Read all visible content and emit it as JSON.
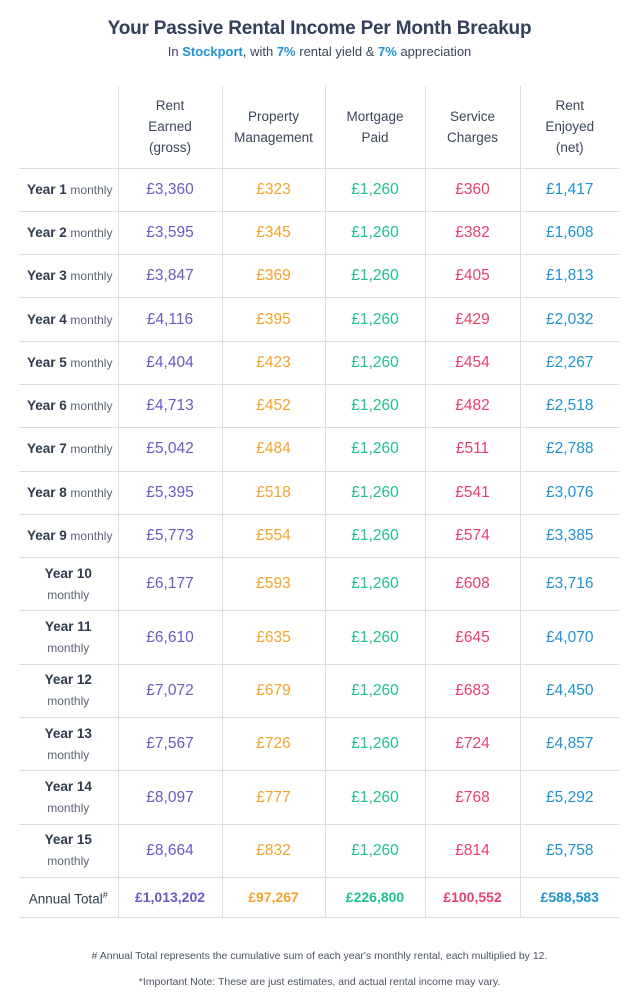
{
  "header": {
    "title": "Your Passive Rental Income Per Month Breakup",
    "sub_in": "In",
    "location": "Stockport",
    "sub_with": ", with",
    "yield": "7%",
    "sub_yield_text": "rental yield &",
    "appreciation": "7%",
    "sub_appreciation_text": "appreciation"
  },
  "columns": {
    "rent": [
      "Rent",
      "Earned",
      "(gross)"
    ],
    "pm": [
      "Property",
      "Management"
    ],
    "mortgage": [
      "Mortgage",
      "Paid"
    ],
    "service": [
      "Service",
      "Charges"
    ],
    "net": [
      "Rent",
      "Enjoyed",
      "(net)"
    ]
  },
  "rows": [
    {
      "year": "Year 1",
      "period": "monthly",
      "rent": "£3,360",
      "pm": "£323",
      "mortgage": "£1,260",
      "service": "£360",
      "net": "£1,417"
    },
    {
      "year": "Year 2",
      "period": "monthly",
      "rent": "£3,595",
      "pm": "£345",
      "mortgage": "£1,260",
      "service": "£382",
      "net": "£1,608"
    },
    {
      "year": "Year 3",
      "period": "monthly",
      "rent": "£3,847",
      "pm": "£369",
      "mortgage": "£1,260",
      "service": "£405",
      "net": "£1,813"
    },
    {
      "year": "Year 4",
      "period": "monthly",
      "rent": "£4,116",
      "pm": "£395",
      "mortgage": "£1,260",
      "service": "£429",
      "net": "£2,032"
    },
    {
      "year": "Year 5",
      "period": "monthly",
      "rent": "£4,404",
      "pm": "£423",
      "mortgage": "£1,260",
      "service": "£454",
      "net": "£2,267"
    },
    {
      "year": "Year 6",
      "period": "monthly",
      "rent": "£4,713",
      "pm": "£452",
      "mortgage": "£1,260",
      "service": "£482",
      "net": "£2,518"
    },
    {
      "year": "Year 7",
      "period": "monthly",
      "rent": "£5,042",
      "pm": "£484",
      "mortgage": "£1,260",
      "service": "£511",
      "net": "£2,788"
    },
    {
      "year": "Year 8",
      "period": "monthly",
      "rent": "£5,395",
      "pm": "£518",
      "mortgage": "£1,260",
      "service": "£541",
      "net": "£3,076"
    },
    {
      "year": "Year 9",
      "period": "monthly",
      "rent": "£5,773",
      "pm": "£554",
      "mortgage": "£1,260",
      "service": "£574",
      "net": "£3,385"
    },
    {
      "year": "Year 10",
      "period": "monthly",
      "rent": "£6,177",
      "pm": "£593",
      "mortgage": "£1,260",
      "service": "£608",
      "net": "£3,716"
    },
    {
      "year": "Year 11",
      "period": "monthly",
      "rent": "£6,610",
      "pm": "£635",
      "mortgage": "£1,260",
      "service": "£645",
      "net": "£4,070"
    },
    {
      "year": "Year 12",
      "period": "monthly",
      "rent": "£7,072",
      "pm": "£679",
      "mortgage": "£1,260",
      "service": "£683",
      "net": "£4,450"
    },
    {
      "year": "Year 13",
      "period": "monthly",
      "rent": "£7,567",
      "pm": "£726",
      "mortgage": "£1,260",
      "service": "£724",
      "net": "£4,857"
    },
    {
      "year": "Year 14",
      "period": "monthly",
      "rent": "£8,097",
      "pm": "£777",
      "mortgage": "£1,260",
      "service": "£768",
      "net": "£5,292"
    },
    {
      "year": "Year 15",
      "period": "monthly",
      "rent": "£8,664",
      "pm": "£832",
      "mortgage": "£1,260",
      "service": "£814",
      "net": "£5,758"
    }
  ],
  "total": {
    "label": "Annual Total",
    "marker": "#",
    "rent": "£1,013,202",
    "pm": "£97,267",
    "mortgage": "£226,800",
    "service": "£100,552",
    "net": "£588,583"
  },
  "notes": {
    "total_note": "# Annual Total represents the cumulative sum of each year's monthly rental, each multiplied by 12.",
    "important_note": "*Important Note: These are just estimates, and actual rental income may vary."
  },
  "colors": {
    "rent": "#6a5ac4",
    "management": "#f4a32a",
    "mortgage": "#20c28a",
    "service": "#e8406a",
    "net": "#1f93d1"
  }
}
